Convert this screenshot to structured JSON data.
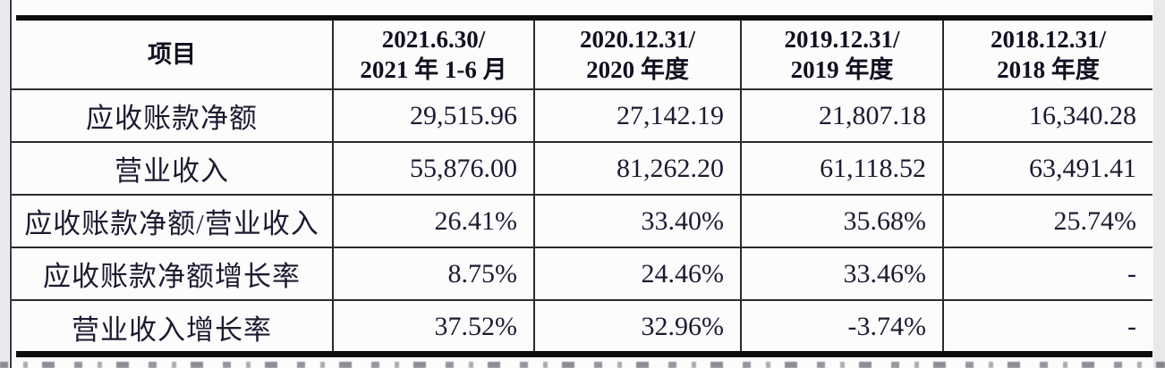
{
  "table": {
    "item_header": "项目",
    "columns": [
      {
        "line1": "2021.6.30/",
        "line2": "2021 年 1-6 月"
      },
      {
        "line1": "2020.12.31/",
        "line2": "2020 年度"
      },
      {
        "line1": "2019.12.31/",
        "line2": "2019 年度"
      },
      {
        "line1": "2018.12.31/",
        "line2": "2018 年度"
      }
    ],
    "rows": [
      {
        "label": "应收账款净额",
        "values": [
          "29,515.96",
          "27,142.19",
          "21,807.18",
          "16,340.28"
        ]
      },
      {
        "label": "营业收入",
        "values": [
          "55,876.00",
          "81,262.20",
          "61,118.52",
          "63,491.41"
        ]
      },
      {
        "label": "应收账款净额/营业收入",
        "values": [
          "26.41%",
          "33.40%",
          "35.68%",
          "25.74%"
        ]
      },
      {
        "label": "应收账款净额增长率",
        "values": [
          "8.75%",
          "24.46%",
          "33.46%",
          "-"
        ]
      },
      {
        "label": "营业收入增长率",
        "values": [
          "37.52%",
          "32.96%",
          "-3.74%",
          "-"
        ]
      }
    ]
  },
  "colors": {
    "text": "#1b1b30",
    "thin_border": "#2b2b2b",
    "thick_border": "#0d0d0d",
    "page_margin": "#e9e9ec",
    "background": "#fcfcfd"
  }
}
